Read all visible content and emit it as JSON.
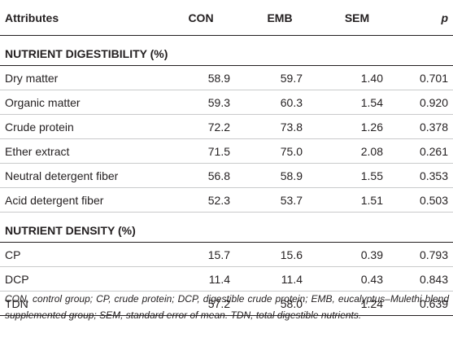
{
  "table": {
    "headers": {
      "attributes": "Attributes",
      "con": "CON",
      "emb": "EMB",
      "sem": "SEM",
      "p": "p"
    },
    "sections": [
      {
        "title": "NUTRIENT DIGESTIBILITY (%)",
        "rows": [
          {
            "attribute": "Dry matter",
            "con": "58.9",
            "emb": "59.7",
            "sem": "1.40",
            "p": "0.701"
          },
          {
            "attribute": "Organic matter",
            "con": "59.3",
            "emb": "60.3",
            "sem": "1.54",
            "p": "0.920"
          },
          {
            "attribute": "Crude protein",
            "con": "72.2",
            "emb": "73.8",
            "sem": "1.26",
            "p": "0.378"
          },
          {
            "attribute": "Ether extract",
            "con": "71.5",
            "emb": "75.0",
            "sem": "2.08",
            "p": "0.261"
          },
          {
            "attribute": "Neutral detergent fiber",
            "con": "56.8",
            "emb": "58.9",
            "sem": "1.55",
            "p": "0.353"
          },
          {
            "attribute": "Acid detergent fiber",
            "con": "52.3",
            "emb": "53.7",
            "sem": "1.51",
            "p": "0.503"
          }
        ]
      },
      {
        "title": "NUTRIENT DENSITY (%)",
        "rows": [
          {
            "attribute": "CP",
            "con": "15.7",
            "emb": "15.6",
            "sem": "0.39",
            "p": "0.793"
          },
          {
            "attribute": "DCP",
            "con": "11.4",
            "emb": "11.4",
            "sem": "0.43",
            "p": "0.843"
          },
          {
            "attribute": "TDN",
            "con": "57.2",
            "emb": "58.0",
            "sem": "1.24",
            "p": "0.639"
          }
        ]
      }
    ]
  },
  "footnote": "CON, control group; CP, crude protein; DCP, digestible crude protein; EMB, eucalyptus–Mulethi blend supplemented group; SEM, standard error of mean. TDN, total digestible nutrients."
}
